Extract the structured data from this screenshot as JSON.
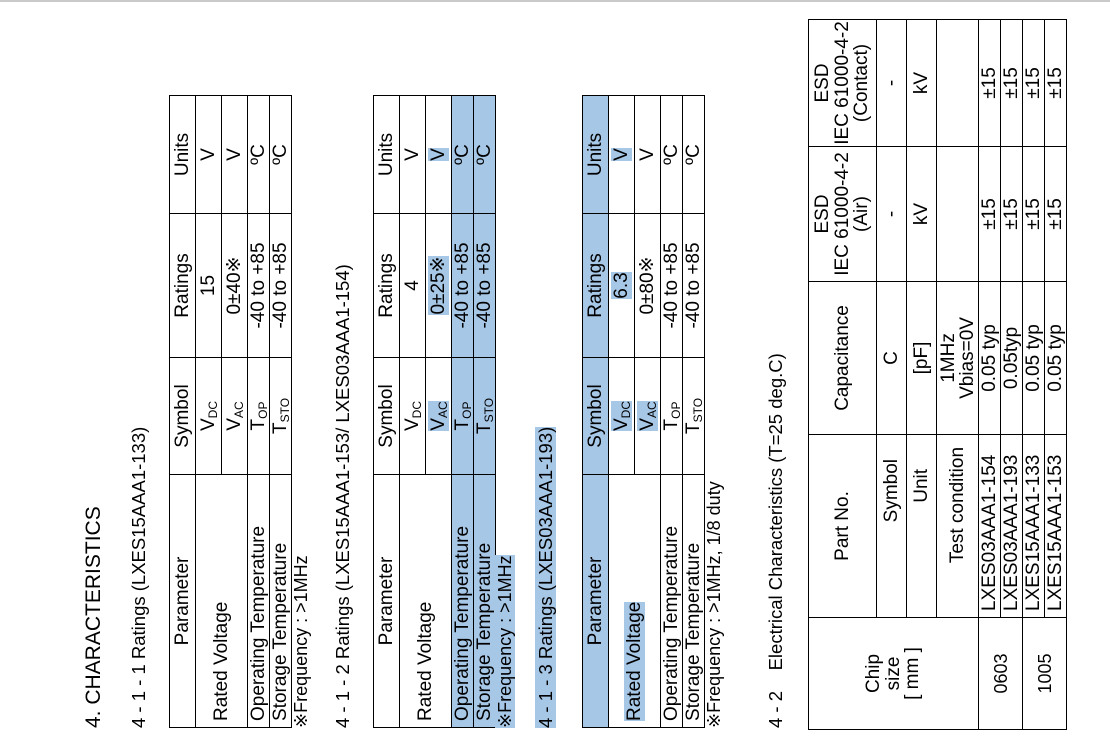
{
  "section_title": "4. CHARACTERISTICS",
  "t1": {
    "heading": "4 - 1 - 1 Ratings (LXES15AAA1-133)",
    "headers": [
      "Parameter",
      "Symbol",
      "Ratings",
      "Units"
    ],
    "rated_voltage": "Rated Voltage",
    "rows": [
      {
        "sym": "V",
        "sub": "DC",
        "rating": "15",
        "unit": "V"
      },
      {
        "sym": "V",
        "sub": "AC",
        "rating": "0±40※",
        "unit": "V"
      },
      {
        "param": "Operating Temperature",
        "sym": "T",
        "sub": "OP",
        "rating": "-40 to +85",
        "unit": "ºC"
      },
      {
        "param": "Storage Temperature",
        "sym": "T",
        "sub": "STO",
        "rating": "-40 to +85",
        "unit": "ºC"
      }
    ],
    "note": "※Frequency : >1MHz"
  },
  "t2": {
    "heading": "4 - 1 - 2 Ratings (LXES15AAA1-153/ LXES03AAA1-154)",
    "headers": [
      "Parameter",
      "Symbol",
      "Ratings",
      "Units"
    ],
    "rated_voltage": "Rated Voltage",
    "rows": [
      {
        "sym": "V",
        "sub": "DC",
        "rating": "4",
        "unit": "V"
      },
      {
        "sym": "V",
        "sub": "AC",
        "rating": "0±25※",
        "unit": "V"
      },
      {
        "param": "Operating Temperature",
        "sym": "T",
        "sub": "OP",
        "rating": "-40 to +85",
        "unit": "ºC"
      },
      {
        "param": "Storage Temperature",
        "sym": "T",
        "sub": "STO",
        "rating": "-40 to +85",
        "unit": "ºC"
      }
    ],
    "note": "※Frequency : >1MHz"
  },
  "t3": {
    "heading": "4 - 1 - 3 Ratings (LXES03AAA1-193)",
    "headers": [
      "Parameter",
      "Symbol",
      "Ratings",
      "Units"
    ],
    "rated_voltage": "Rated Voltage",
    "rows": [
      {
        "sym": "V",
        "sub": "DC",
        "rating": "6.3",
        "unit": "V"
      },
      {
        "sym": "V",
        "sub": "AC",
        "rating": "0±80※",
        "unit": "V"
      },
      {
        "param": "Operating Temperature",
        "sym": "T",
        "sub": "OP",
        "rating": "-40 to +85",
        "unit": "ºC"
      },
      {
        "param": "Storage Temperature",
        "sym": "T",
        "sub": "STO",
        "rating": "-40 to +85",
        "unit": "ºC"
      }
    ],
    "note": "※Frequency : >1MHz, 1/8 duty"
  },
  "t4": {
    "heading_num": "4 - 2",
    "heading": "Electrical Characteristics (T=25 deg.C)",
    "chip_size_line1": "Chip",
    "chip_size_line2": "size",
    "chip_size_line3": "[ mm ]",
    "part_no": "Part No.",
    "capacitance": "Capacitance",
    "esd_air_1": "ESD",
    "esd_air_2": "IEC 61000-4-2",
    "esd_air_3": "(Air)",
    "esd_contact_1": "ESD",
    "esd_contact_2": "IEC 61000-4-2",
    "esd_contact_3": "(Contact)",
    "symbol_label": "Symbol",
    "symbol_cap": "C",
    "symbol_air": "-",
    "symbol_contact": "-",
    "unit_label": "Unit",
    "unit_cap": "[pF]",
    "unit_air": "kV",
    "unit_contact": "kV",
    "test_label": "Test condition",
    "test_cap_1": "1MHz",
    "test_cap_2": "Vbias=0V",
    "sizes": [
      "0603",
      "1005"
    ],
    "rows": [
      {
        "part": "LXES03AAA1-154",
        "cap": "0.05 typ",
        "air": "±15",
        "contact": "±15"
      },
      {
        "part": "LXES03AAA1-193",
        "cap": "0.05typ",
        "air": "±15",
        "contact": "±15"
      },
      {
        "part": "LXES15AAA1-133",
        "cap": "0.05 typ",
        "air": "±15",
        "contact": "±15"
      },
      {
        "part": "LXES15AAA1-153",
        "cap": "0.05 typ",
        "air": "±15",
        "contact": "±15"
      }
    ]
  }
}
